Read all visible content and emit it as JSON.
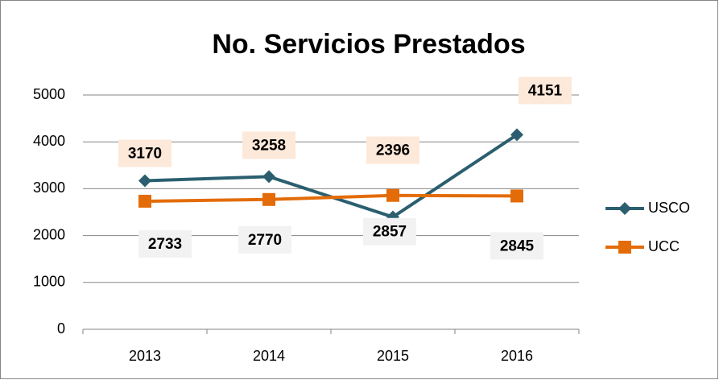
{
  "chart_data": {
    "type": "line",
    "title": "No. Servicios Prestados",
    "categories": [
      "2013",
      "2014",
      "2015",
      "2016"
    ],
    "series": [
      {
        "name": "USCO",
        "color": "#2b5f6f",
        "marker": "diamond",
        "label_background": "#fde9d9",
        "values": [
          3170,
          3258,
          2396,
          4151
        ]
      },
      {
        "name": "UCC",
        "color": "#e36c09",
        "marker": "square",
        "label_background": "#f2f2f2",
        "values": [
          2733,
          2770,
          2857,
          2845
        ]
      }
    ],
    "ylim": [
      0,
      5000
    ],
    "yticks": [
      0,
      1000,
      2000,
      3000,
      4000,
      5000
    ],
    "grid": true,
    "legend": "right"
  }
}
